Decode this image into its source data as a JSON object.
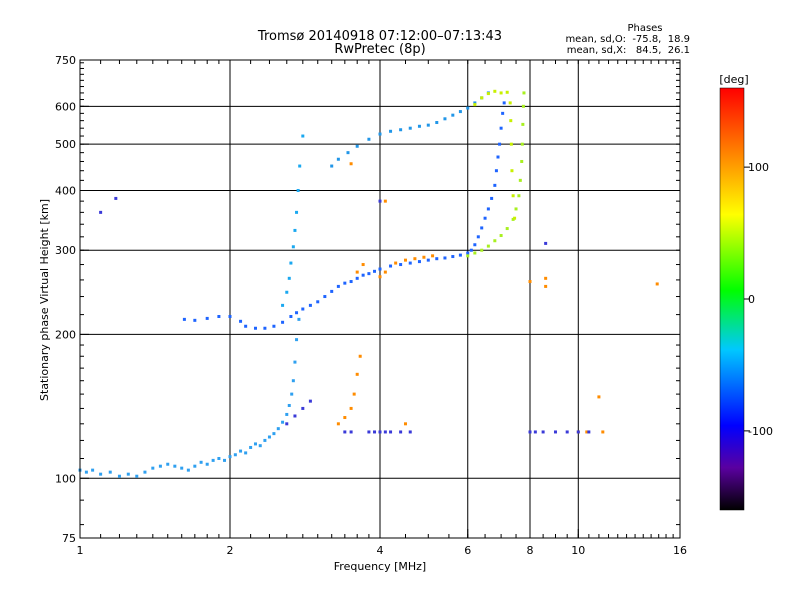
{
  "chart_data": {
    "type": "scatter",
    "title": "Tromsø 20140918 07:12:00–07:13:43",
    "subtitle": "RwPretec (8p)",
    "xlabel": "Frequency [MHz]",
    "ylabel": "Stationary phase Virtual Height [km]",
    "x_scale": "log",
    "y_scale": "log",
    "xlim": [
      1,
      16
    ],
    "ylim": [
      75,
      750
    ],
    "x_ticks": [
      {
        "value": 1,
        "label": "1"
      },
      {
        "value": 2,
        "label": "2"
      },
      {
        "value": 4,
        "label": "4"
      },
      {
        "value": 6,
        "label": "6"
      },
      {
        "value": 8,
        "label": "8"
      },
      {
        "value": 10,
        "label": "10"
      },
      {
        "value": 16,
        "label": "16"
      }
    ],
    "x_gridlines": [
      2,
      4,
      6,
      8,
      10
    ],
    "y_ticks": [
      {
        "value": 75,
        "label": "75"
      },
      {
        "value": 100,
        "label": "100"
      },
      {
        "value": 200,
        "label": "200"
      },
      {
        "value": 300,
        "label": "300"
      },
      {
        "value": 400,
        "label": "400"
      },
      {
        "value": 500,
        "label": "500"
      },
      {
        "value": 600,
        "label": "600"
      },
      {
        "value": 750,
        "label": "750"
      }
    ],
    "y_gridlines": [
      100,
      200,
      300,
      400,
      500,
      600
    ],
    "grid": true,
    "phase_stats": {
      "heading": "Phases",
      "line_o": "mean, sd,O:  -75.8,  18.9",
      "line_x": "mean, sd,X:   84.5,  26.1"
    },
    "colorbar": {
      "label": "[deg]",
      "range": [
        -160,
        160
      ],
      "ticks": [
        {
          "value": 100,
          "label": "100"
        },
        {
          "value": 0,
          "label": "0"
        },
        {
          "value": -100,
          "label": "-100"
        }
      ],
      "colors": [
        "#000000",
        "#5a00a0",
        "#0000ff",
        "#00c8ff",
        "#00ff00",
        "#ffff00",
        "#ff8000",
        "#ff0000"
      ]
    },
    "series": [
      {
        "name": "",
        "color": "#2fa0f0",
        "description_points": [
          [
            1.0,
            104
          ],
          [
            1.03,
            103
          ],
          [
            1.06,
            104
          ],
          [
            1.1,
            102
          ],
          [
            1.15,
            103
          ],
          [
            1.2,
            101
          ],
          [
            1.25,
            102
          ],
          [
            1.3,
            101
          ],
          [
            1.35,
            103
          ],
          [
            1.4,
            105
          ],
          [
            1.45,
            106
          ],
          [
            1.5,
            107
          ],
          [
            1.55,
            106
          ],
          [
            1.6,
            105
          ],
          [
            1.65,
            104
          ],
          [
            1.7,
            106
          ],
          [
            1.75,
            108
          ],
          [
            1.8,
            107
          ],
          [
            1.85,
            109
          ],
          [
            1.9,
            110
          ],
          [
            1.95,
            109
          ],
          [
            2.0,
            111
          ],
          [
            2.05,
            112
          ],
          [
            2.1,
            114
          ],
          [
            2.15,
            113
          ],
          [
            2.2,
            116
          ],
          [
            2.25,
            118
          ],
          [
            2.3,
            117
          ],
          [
            2.35,
            120
          ],
          [
            2.4,
            122
          ],
          [
            2.45,
            124
          ],
          [
            2.5,
            127
          ],
          [
            2.55,
            131
          ],
          [
            2.6,
            136
          ],
          [
            2.63,
            142
          ],
          [
            2.66,
            150
          ],
          [
            2.68,
            160
          ],
          [
            2.7,
            175
          ],
          [
            2.72,
            195
          ],
          [
            2.75,
            215
          ]
        ]
      },
      {
        "name": "",
        "color": "#1e64ff",
        "description_points": [
          [
            1.62,
            215
          ],
          [
            1.7,
            214
          ],
          [
            1.8,
            216
          ],
          [
            1.9,
            218
          ],
          [
            2.0,
            218
          ],
          [
            2.1,
            213
          ],
          [
            2.15,
            208
          ],
          [
            2.25,
            206
          ],
          [
            2.35,
            206
          ],
          [
            2.45,
            208
          ],
          [
            2.55,
            212
          ],
          [
            2.65,
            218
          ],
          [
            2.72,
            222
          ],
          [
            2.8,
            226
          ],
          [
            2.9,
            230
          ],
          [
            3.0,
            234
          ],
          [
            3.1,
            240
          ],
          [
            3.2,
            246
          ],
          [
            3.3,
            252
          ],
          [
            3.4,
            256
          ],
          [
            3.5,
            258
          ],
          [
            3.6,
            262
          ],
          [
            3.7,
            266
          ],
          [
            3.8,
            268
          ],
          [
            3.9,
            271
          ],
          [
            4.0,
            274
          ],
          [
            4.2,
            278
          ],
          [
            4.4,
            280
          ],
          [
            4.6,
            282
          ],
          [
            4.8,
            284
          ],
          [
            5.0,
            286
          ],
          [
            5.2,
            288
          ],
          [
            5.4,
            289
          ],
          [
            5.6,
            291
          ],
          [
            5.8,
            293
          ],
          [
            6.0,
            296
          ],
          [
            6.1,
            300
          ],
          [
            6.2,
            308
          ],
          [
            6.3,
            320
          ],
          [
            6.4,
            334
          ],
          [
            6.5,
            350
          ],
          [
            6.6,
            366
          ],
          [
            6.7,
            385
          ],
          [
            6.8,
            410
          ],
          [
            6.85,
            440
          ],
          [
            6.9,
            470
          ],
          [
            6.95,
            500
          ],
          [
            7.0,
            540
          ],
          [
            7.05,
            580
          ],
          [
            7.1,
            610
          ]
        ]
      },
      {
        "name": "",
        "color": "#1aa8f0",
        "description_points": [
          [
            2.55,
            230
          ],
          [
            2.6,
            245
          ],
          [
            2.63,
            262
          ],
          [
            2.65,
            282
          ],
          [
            2.68,
            305
          ],
          [
            2.7,
            330
          ],
          [
            2.72,
            360
          ],
          [
            2.74,
            400
          ],
          [
            2.76,
            450
          ],
          [
            2.8,
            520
          ]
        ]
      },
      {
        "name": "",
        "color": "#2196e8",
        "description_points": [
          [
            3.2,
            450
          ],
          [
            3.3,
            465
          ],
          [
            3.45,
            480
          ],
          [
            3.6,
            495
          ],
          [
            3.8,
            512
          ],
          [
            4.0,
            525
          ],
          [
            4.2,
            532
          ],
          [
            4.4,
            536
          ],
          [
            4.6,
            540
          ],
          [
            4.8,
            545
          ],
          [
            5.0,
            548
          ],
          [
            5.2,
            555
          ],
          [
            5.4,
            565
          ],
          [
            5.6,
            575
          ],
          [
            5.8,
            585
          ],
          [
            6.0,
            595
          ],
          [
            6.2,
            610
          ],
          [
            6.4,
            625
          ],
          [
            6.6,
            640
          ]
        ]
      },
      {
        "name": "",
        "color": "#a8f020",
        "description_points": [
          [
            6.0,
            292
          ],
          [
            6.2,
            296
          ],
          [
            6.4,
            300
          ],
          [
            6.6,
            306
          ],
          [
            6.8,
            314
          ],
          [
            7.0,
            322
          ],
          [
            7.2,
            333
          ],
          [
            7.4,
            348
          ],
          [
            7.5,
            366
          ],
          [
            7.6,
            390
          ],
          [
            7.65,
            420
          ],
          [
            7.7,
            460
          ],
          [
            7.72,
            500
          ],
          [
            7.74,
            550
          ],
          [
            7.76,
            600
          ],
          [
            7.78,
            640
          ]
        ]
      },
      {
        "name": "",
        "color": "#c8f000",
        "description_points": [
          [
            6.2,
            605
          ],
          [
            6.4,
            625
          ],
          [
            6.6,
            638
          ],
          [
            6.8,
            645
          ],
          [
            7.0,
            640
          ],
          [
            7.2,
            642
          ],
          [
            7.3,
            610
          ],
          [
            7.32,
            560
          ],
          [
            7.34,
            500
          ],
          [
            7.36,
            440
          ],
          [
            7.4,
            390
          ],
          [
            7.45,
            350
          ]
        ]
      },
      {
        "name": "",
        "color": "#ff8c00",
        "description_points": [
          [
            3.6,
            270
          ],
          [
            3.7,
            280
          ],
          [
            4.0,
            264
          ],
          [
            4.1,
            270
          ],
          [
            4.3,
            282
          ],
          [
            4.5,
            286
          ],
          [
            4.7,
            288
          ],
          [
            4.9,
            290
          ],
          [
            5.1,
            292
          ],
          [
            3.3,
            130
          ],
          [
            3.4,
            134
          ],
          [
            3.5,
            140
          ],
          [
            3.55,
            150
          ],
          [
            3.6,
            165
          ],
          [
            3.65,
            180
          ],
          [
            8.0,
            258
          ],
          [
            8.6,
            262
          ],
          [
            8.6,
            252
          ],
          [
            11.0,
            148
          ],
          [
            11.2,
            125
          ],
          [
            10.4,
            125
          ],
          [
            10.0,
            125
          ],
          [
            14.4,
            255
          ],
          [
            4.5,
            130
          ],
          [
            4.1,
            380
          ],
          [
            3.5,
            455
          ]
        ]
      },
      {
        "name": "",
        "color": "#3a3ad8",
        "description_points": [
          [
            3.8,
            125
          ],
          [
            3.9,
            125
          ],
          [
            4.0,
            125
          ],
          [
            4.1,
            125
          ],
          [
            4.2,
            125
          ],
          [
            4.4,
            125
          ],
          [
            4.6,
            125
          ],
          [
            3.4,
            125
          ],
          [
            3.5,
            125
          ],
          [
            8.0,
            125
          ],
          [
            8.2,
            125
          ],
          [
            8.5,
            125
          ],
          [
            9.0,
            125
          ],
          [
            9.5,
            125
          ],
          [
            10.0,
            125
          ],
          [
            10.5,
            125
          ],
          [
            2.6,
            130
          ],
          [
            2.7,
            135
          ],
          [
            2.8,
            140
          ],
          [
            2.9,
            145
          ],
          [
            8.6,
            310
          ],
          [
            4.0,
            380
          ],
          [
            1.18,
            385
          ],
          [
            1.1,
            360
          ]
        ]
      }
    ]
  }
}
